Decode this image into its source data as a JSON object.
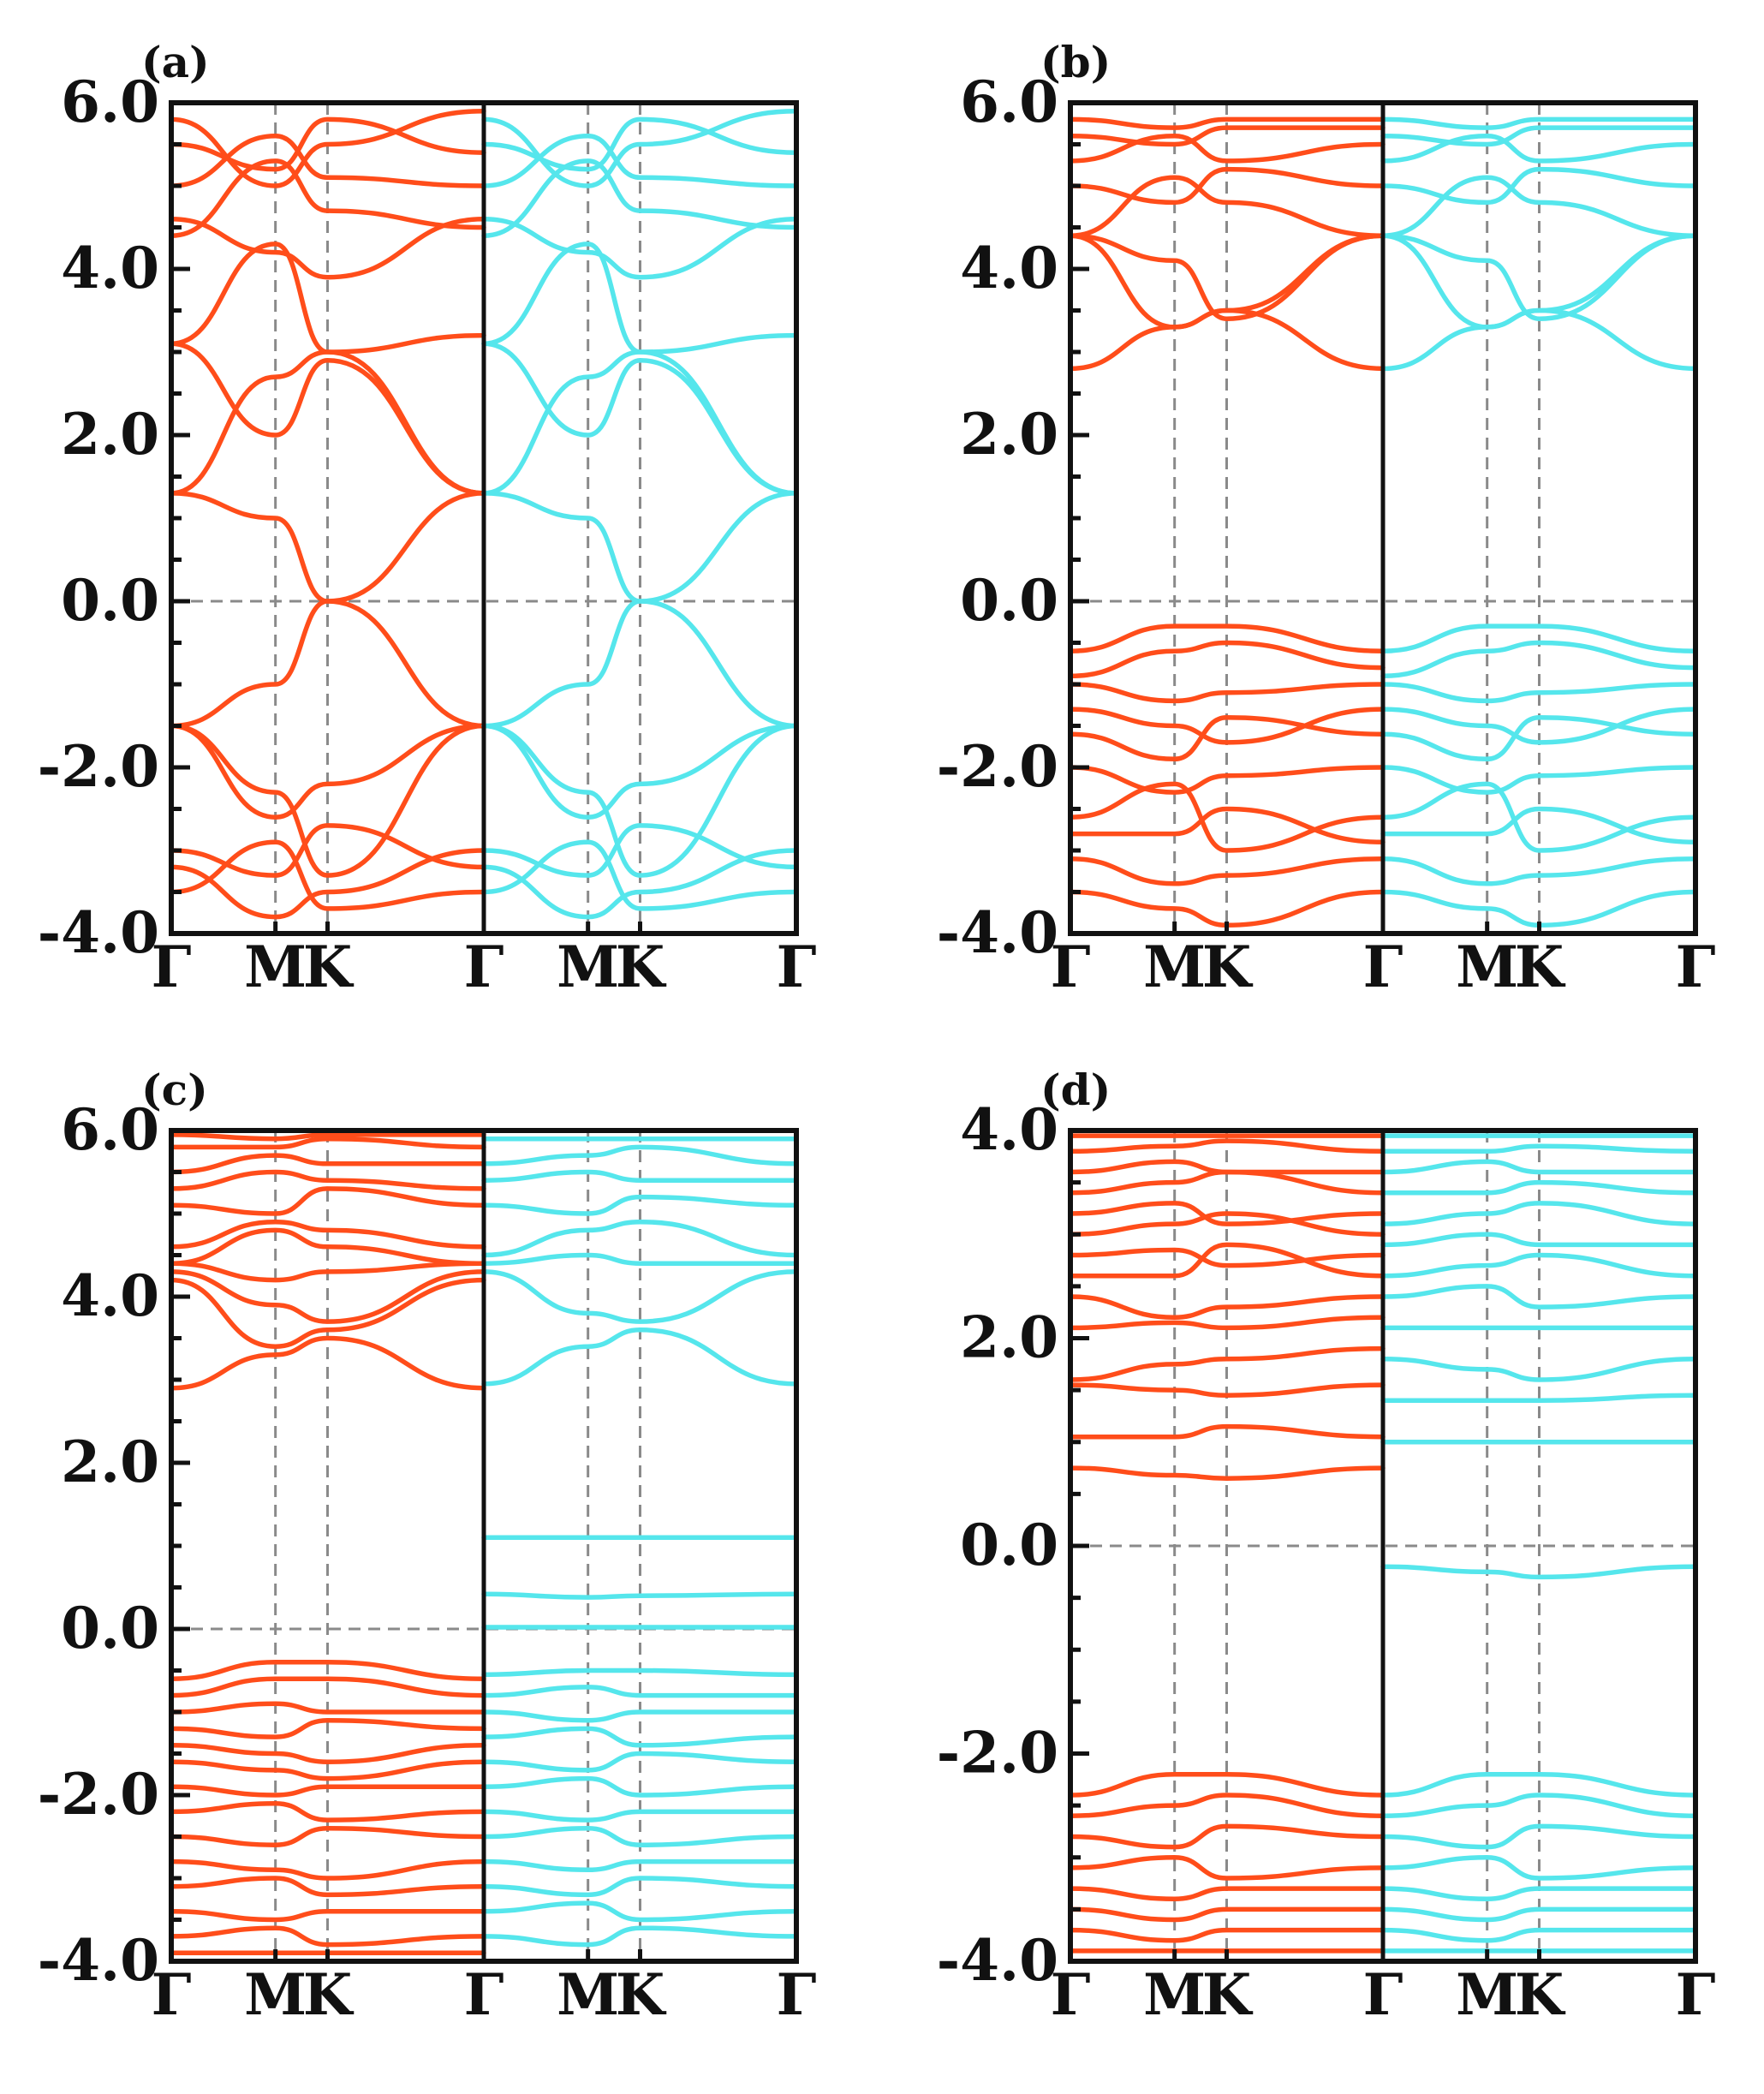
{
  "figure": {
    "description_free": true
  },
  "colors": {
    "spin_up": "#ff4d1a",
    "spin_down": "#55e6ec",
    "axis": "#111111",
    "guide": "#8a8a8a"
  },
  "chart_data": [
    {
      "type": "line",
      "label": "(a)",
      "ylim": [
        -4.0,
        6.0
      ],
      "yticks": [
        6.0,
        4.0,
        2.0,
        0.0,
        -2.0,
        -4.0
      ],
      "ytick_labels": [
        "6.0",
        "4.0",
        "2.0",
        "0.0",
        "-2.0",
        "-4.0"
      ],
      "kpoints": [
        0,
        1,
        1.5,
        3
      ],
      "xtick_labels": [
        "Γ",
        "M",
        "K",
        "Γ",
        "M",
        "K",
        "Γ"
      ],
      "fermi_level": 0.0,
      "bands_up": [
        [
          1.3,
          1.0,
          0.0,
          1.3
        ],
        [
          -1.5,
          -1.0,
          0.0,
          -1.5
        ],
        [
          1.3,
          2.7,
          3.0,
          1.3
        ],
        [
          3.1,
          2.0,
          2.9,
          1.3
        ],
        [
          -1.5,
          -2.6,
          -2.2,
          -1.5
        ],
        [
          -1.5,
          -2.3,
          -3.3,
          -1.5
        ],
        [
          3.1,
          4.3,
          3.0,
          3.2
        ],
        [
          4.6,
          4.2,
          3.9,
          4.6
        ],
        [
          4.4,
          5.3,
          4.7,
          4.5
        ],
        [
          5.0,
          5.6,
          5.1,
          5.0
        ],
        [
          5.5,
          5.2,
          5.8,
          5.4
        ],
        [
          5.8,
          5.0,
          5.5,
          5.9
        ],
        [
          -3.0,
          -3.3,
          -2.7,
          -3.2
        ],
        [
          -3.5,
          -2.9,
          -3.7,
          -3.5
        ],
        [
          -3.2,
          -3.8,
          -3.5,
          -3.0
        ]
      ],
      "bands_down": [
        [
          1.3,
          1.0,
          0.0,
          1.3
        ],
        [
          -1.5,
          -1.0,
          0.0,
          -1.5
        ],
        [
          1.3,
          2.7,
          3.0,
          1.3
        ],
        [
          3.1,
          2.0,
          2.9,
          1.3
        ],
        [
          -1.5,
          -2.6,
          -2.2,
          -1.5
        ],
        [
          -1.5,
          -2.3,
          -3.3,
          -1.5
        ],
        [
          3.1,
          4.3,
          3.0,
          3.2
        ],
        [
          4.6,
          4.2,
          3.9,
          4.6
        ],
        [
          4.4,
          5.3,
          4.7,
          4.5
        ],
        [
          5.0,
          5.6,
          5.1,
          5.0
        ],
        [
          5.5,
          5.2,
          5.8,
          5.4
        ],
        [
          5.8,
          5.0,
          5.5,
          5.9
        ],
        [
          -3.0,
          -3.3,
          -2.7,
          -3.2
        ],
        [
          -3.5,
          -2.9,
          -3.7,
          -3.5
        ],
        [
          -3.2,
          -3.8,
          -3.5,
          -3.0
        ]
      ]
    },
    {
      "type": "line",
      "label": "(b)",
      "ylim": [
        -4.0,
        6.0
      ],
      "yticks": [
        6.0,
        4.0,
        2.0,
        0.0,
        -2.0,
        -4.0
      ],
      "ytick_labels": [
        "6.0",
        "4.0",
        "2.0",
        "0.0",
        "-2.0",
        "-4.0"
      ],
      "kpoints": [
        0,
        1,
        1.5,
        3
      ],
      "xtick_labels": [
        "Γ",
        "M",
        "K",
        "Γ",
        "M",
        "K",
        "Γ"
      ],
      "fermi_level": 0.0,
      "bands_up": [
        [
          2.8,
          3.3,
          3.5,
          2.8
        ],
        [
          4.4,
          4.1,
          3.4,
          4.4
        ],
        [
          4.4,
          3.3,
          3.5,
          4.4
        ],
        [
          4.4,
          5.1,
          4.8,
          4.4
        ],
        [
          5.0,
          4.8,
          5.2,
          5.0
        ],
        [
          5.3,
          5.6,
          5.3,
          5.5
        ],
        [
          5.6,
          5.5,
          5.7,
          5.7
        ],
        [
          5.8,
          5.7,
          5.8,
          5.8
        ],
        [
          -0.6,
          -0.3,
          -0.3,
          -0.6
        ],
        [
          -0.9,
          -0.6,
          -0.5,
          -0.8
        ],
        [
          -1.0,
          -1.2,
          -1.1,
          -1.0
        ],
        [
          -1.3,
          -1.5,
          -1.7,
          -1.3
        ],
        [
          -1.6,
          -1.9,
          -1.4,
          -1.6
        ],
        [
          -2.0,
          -2.3,
          -2.1,
          -2.0
        ],
        [
          -2.6,
          -2.2,
          -3.0,
          -2.6
        ],
        [
          -2.8,
          -2.8,
          -2.5,
          -2.9
        ],
        [
          -3.1,
          -3.4,
          -3.3,
          -3.1
        ],
        [
          -3.5,
          -3.7,
          -3.9,
          -3.5
        ]
      ],
      "bands_down": [
        [
          2.8,
          3.3,
          3.5,
          2.8
        ],
        [
          4.4,
          4.1,
          3.4,
          4.4
        ],
        [
          4.4,
          3.3,
          3.5,
          4.4
        ],
        [
          4.4,
          5.1,
          4.8,
          4.4
        ],
        [
          5.0,
          4.8,
          5.2,
          5.0
        ],
        [
          5.3,
          5.6,
          5.3,
          5.5
        ],
        [
          5.6,
          5.5,
          5.7,
          5.7
        ],
        [
          5.8,
          5.7,
          5.8,
          5.8
        ],
        [
          -0.6,
          -0.3,
          -0.3,
          -0.6
        ],
        [
          -0.9,
          -0.6,
          -0.5,
          -0.8
        ],
        [
          -1.0,
          -1.2,
          -1.1,
          -1.0
        ],
        [
          -1.3,
          -1.5,
          -1.7,
          -1.3
        ],
        [
          -1.6,
          -1.9,
          -1.4,
          -1.6
        ],
        [
          -2.0,
          -2.3,
          -2.1,
          -2.0
        ],
        [
          -2.6,
          -2.2,
          -3.0,
          -2.6
        ],
        [
          -2.8,
          -2.8,
          -2.5,
          -2.9
        ],
        [
          -3.1,
          -3.4,
          -3.3,
          -3.1
        ],
        [
          -3.5,
          -3.7,
          -3.9,
          -3.5
        ]
      ]
    },
    {
      "type": "line",
      "label": "(c)",
      "ylim": [
        -4.0,
        6.0
      ],
      "yticks": [
        6.0,
        4.0,
        2.0,
        0.0,
        -2.0,
        -4.0
      ],
      "ytick_labels": [
        "6.0",
        "4.0",
        "2.0",
        "0.0",
        "-2.0",
        "-4.0"
      ],
      "kpoints": [
        0,
        1,
        1.5,
        3
      ],
      "xtick_labels": [
        "Γ",
        "M",
        "K",
        "Γ",
        "M",
        "K",
        "Γ"
      ],
      "fermi_level": 0.0,
      "bands_up": [
        [
          2.9,
          3.3,
          3.5,
          2.9
        ],
        [
          4.2,
          3.4,
          3.6,
          4.2
        ],
        [
          4.3,
          3.9,
          3.7,
          4.3
        ],
        [
          4.4,
          4.2,
          4.3,
          4.4
        ],
        [
          4.4,
          4.8,
          4.6,
          4.4
        ],
        [
          4.6,
          4.9,
          4.8,
          4.6
        ],
        [
          5.1,
          5.0,
          5.3,
          5.1
        ],
        [
          5.3,
          5.5,
          5.4,
          5.3
        ],
        [
          5.5,
          5.7,
          5.6,
          5.6
        ],
        [
          5.8,
          5.8,
          5.9,
          5.8
        ],
        [
          5.95,
          5.9,
          5.95,
          5.95
        ],
        [
          -0.6,
          -0.4,
          -0.4,
          -0.6
        ],
        [
          -0.8,
          -0.6,
          -0.6,
          -0.8
        ],
        [
          -1.0,
          -0.9,
          -1.0,
          -1.0
        ],
        [
          -1.2,
          -1.3,
          -1.1,
          -1.2
        ],
        [
          -1.4,
          -1.5,
          -1.6,
          -1.4
        ],
        [
          -1.6,
          -1.7,
          -1.8,
          -1.6
        ],
        [
          -1.9,
          -2.0,
          -1.9,
          -1.9
        ],
        [
          -2.2,
          -2.1,
          -2.3,
          -2.2
        ],
        [
          -2.5,
          -2.6,
          -2.4,
          -2.5
        ],
        [
          -2.8,
          -2.9,
          -3.0,
          -2.8
        ],
        [
          -3.1,
          -3.0,
          -3.2,
          -3.1
        ],
        [
          -3.4,
          -3.5,
          -3.4,
          -3.4
        ],
        [
          -3.7,
          -3.6,
          -3.8,
          -3.7
        ],
        [
          -3.9,
          -3.9,
          -3.9,
          -3.9
        ]
      ],
      "bands_down": [
        [
          2.95,
          3.4,
          3.6,
          2.95
        ],
        [
          4.3,
          3.8,
          3.7,
          4.3
        ],
        [
          4.4,
          4.5,
          4.4,
          4.4
        ],
        [
          4.5,
          4.8,
          4.9,
          4.5
        ],
        [
          5.1,
          5.0,
          5.2,
          5.1
        ],
        [
          5.4,
          5.5,
          5.4,
          5.4
        ],
        [
          5.6,
          5.7,
          5.8,
          5.6
        ],
        [
          5.9,
          5.9,
          5.9,
          5.9
        ],
        [
          1.1,
          1.1,
          1.1,
          1.1
        ],
        [
          0.42,
          0.38,
          0.4,
          0.42
        ],
        [
          0.02,
          0.02,
          0.02,
          0.02
        ],
        [
          -0.55,
          -0.5,
          -0.5,
          -0.55
        ],
        [
          -0.8,
          -0.7,
          -0.8,
          -0.8
        ],
        [
          -1.0,
          -1.1,
          -1.0,
          -1.0
        ],
        [
          -1.3,
          -1.2,
          -1.4,
          -1.3
        ],
        [
          -1.6,
          -1.7,
          -1.5,
          -1.6
        ],
        [
          -1.9,
          -1.8,
          -2.0,
          -1.9
        ],
        [
          -2.2,
          -2.3,
          -2.2,
          -2.2
        ],
        [
          -2.5,
          -2.4,
          -2.6,
          -2.5
        ],
        [
          -2.8,
          -2.9,
          -2.8,
          -2.8
        ],
        [
          -3.1,
          -3.2,
          -3.0,
          -3.1
        ],
        [
          -3.4,
          -3.3,
          -3.5,
          -3.4
        ],
        [
          -3.7,
          -3.8,
          -3.6,
          -3.7
        ]
      ]
    },
    {
      "type": "line",
      "label": "(d)",
      "ylim": [
        -4.0,
        4.0
      ],
      "yticks": [
        4.0,
        2.0,
        0.0,
        -2.0,
        -4.0
      ],
      "ytick_labels": [
        "4.0",
        "2.0",
        "0.0",
        "-2.0",
        "-4.0"
      ],
      "kpoints": [
        0,
        1,
        1.5,
        3
      ],
      "xtick_labels": [
        "Γ",
        "M",
        "K",
        "Γ",
        "M",
        "K",
        "Γ"
      ],
      "fermi_level": 0.0,
      "bands_up": [
        [
          0.75,
          0.68,
          0.65,
          0.75
        ],
        [
          1.05,
          1.05,
          1.15,
          1.05
        ],
        [
          1.55,
          1.5,
          1.45,
          1.55
        ],
        [
          1.6,
          1.75,
          1.8,
          1.9
        ],
        [
          2.1,
          2.15,
          2.1,
          2.2
        ],
        [
          2.4,
          2.2,
          2.3,
          2.4
        ],
        [
          2.6,
          2.6,
          2.9,
          2.6
        ],
        [
          2.8,
          2.85,
          2.7,
          2.8
        ],
        [
          3.0,
          3.1,
          3.2,
          3.0
        ],
        [
          3.2,
          3.3,
          3.1,
          3.2
        ],
        [
          3.4,
          3.5,
          3.6,
          3.4
        ],
        [
          3.6,
          3.7,
          3.6,
          3.6
        ],
        [
          3.8,
          3.85,
          3.9,
          3.8
        ],
        [
          3.95,
          3.95,
          3.95,
          3.95
        ],
        [
          -2.4,
          -2.2,
          -2.2,
          -2.4
        ],
        [
          -2.6,
          -2.5,
          -2.4,
          -2.6
        ],
        [
          -2.8,
          -2.9,
          -2.7,
          -2.8
        ],
        [
          -3.1,
          -3.0,
          -3.2,
          -3.1
        ],
        [
          -3.3,
          -3.4,
          -3.3,
          -3.3
        ],
        [
          -3.5,
          -3.6,
          -3.5,
          -3.5
        ],
        [
          -3.7,
          -3.8,
          -3.7,
          -3.7
        ],
        [
          -3.9,
          -3.9,
          -3.9,
          -3.9
        ]
      ],
      "bands_down": [
        [
          -0.2,
          -0.25,
          -0.3,
          -0.2
        ],
        [
          1.0,
          1.0,
          1.0,
          1.0
        ],
        [
          1.4,
          1.4,
          1.4,
          1.45
        ],
        [
          1.8,
          1.7,
          1.6,
          1.8
        ],
        [
          2.1,
          2.1,
          2.1,
          2.1
        ],
        [
          2.4,
          2.5,
          2.3,
          2.4
        ],
        [
          2.6,
          2.7,
          2.8,
          2.6
        ],
        [
          2.9,
          3.0,
          2.9,
          2.9
        ],
        [
          3.1,
          3.2,
          3.3,
          3.1
        ],
        [
          3.4,
          3.4,
          3.5,
          3.4
        ],
        [
          3.6,
          3.7,
          3.6,
          3.6
        ],
        [
          3.8,
          3.8,
          3.85,
          3.8
        ],
        [
          3.95,
          3.95,
          3.95,
          3.95
        ],
        [
          -2.4,
          -2.2,
          -2.2,
          -2.4
        ],
        [
          -2.6,
          -2.5,
          -2.4,
          -2.6
        ],
        [
          -2.8,
          -2.9,
          -2.7,
          -2.8
        ],
        [
          -3.1,
          -3.0,
          -3.2,
          -3.1
        ],
        [
          -3.3,
          -3.4,
          -3.3,
          -3.3
        ],
        [
          -3.5,
          -3.6,
          -3.5,
          -3.5
        ],
        [
          -3.7,
          -3.8,
          -3.7,
          -3.7
        ],
        [
          -3.9,
          -3.9,
          -3.9,
          -3.9
        ]
      ]
    }
  ]
}
